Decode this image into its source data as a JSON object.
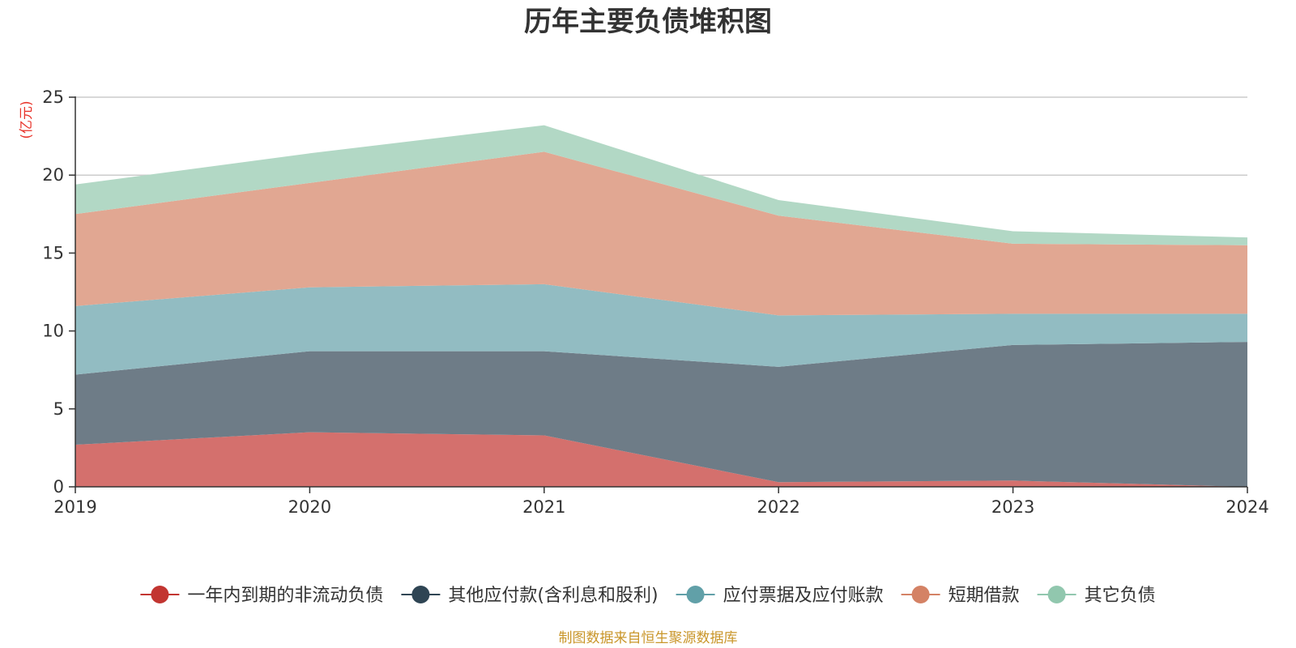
{
  "chart_data": {
    "type": "area",
    "stacked": true,
    "title": "历年主要负债堆积图",
    "unit_label": "亿元",
    "source_note": "制图数据来自恒生聚源数据库",
    "x": [
      "2019",
      "2020",
      "2021",
      "2022",
      "2023",
      "2024"
    ],
    "ylim": [
      0,
      25
    ],
    "yticks": [
      "0",
      "5",
      "10",
      "15",
      "20",
      "25"
    ],
    "grid": true,
    "legend_position": "bottom",
    "series": [
      {
        "name": "一年内到期的非流动负债",
        "color": "#c23531",
        "area_color": "#d4706d",
        "values": [
          2.7,
          3.5,
          3.3,
          0.3,
          0.4,
          0.0
        ]
      },
      {
        "name": "其他应付款(含利息和股利)",
        "color": "#2f4554",
        "area_color": "#6e7c87",
        "values": [
          4.5,
          5.2,
          5.4,
          7.4,
          8.7,
          9.3
        ]
      },
      {
        "name": "应付票据及应付账款",
        "color": "#61a0a8",
        "area_color": "#92bcc2",
        "values": [
          4.4,
          4.1,
          4.3,
          3.3,
          2.0,
          1.8
        ]
      },
      {
        "name": "短期借款",
        "color": "#d48265",
        "area_color": "#e1a792",
        "values": [
          5.9,
          6.7,
          8.5,
          6.4,
          4.5,
          4.4
        ]
      },
      {
        "name": "其它负债",
        "color": "#91c7ae",
        "area_color": "#b2d8c5",
        "values": [
          1.9,
          1.9,
          1.7,
          1.0,
          0.8,
          0.5
        ]
      }
    ]
  }
}
